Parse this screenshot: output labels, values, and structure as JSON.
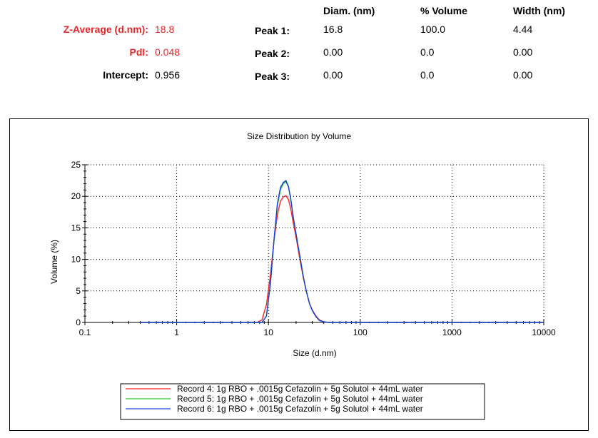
{
  "summary": {
    "z_average_label": "Z-Average (d.nm):",
    "z_average_value": "18.8",
    "pdi_label": "PdI:",
    "pdi_value": "0.048",
    "intercept_label": "Intercept:",
    "intercept_value": "0.956"
  },
  "peaks": {
    "headers": [
      "Diam. (nm)",
      "% Volume",
      "Width (nm)"
    ],
    "rows": [
      {
        "label": "Peak 1:",
        "diam": "16.8",
        "volume": "100.0",
        "width": "4.44"
      },
      {
        "label": "Peak 2:",
        "diam": "0.00",
        "volume": "0.0",
        "width": "0.00"
      },
      {
        "label": "Peak 3:",
        "diam": "0.00",
        "volume": "0.0",
        "width": "0.00"
      }
    ]
  },
  "colors": {
    "highlight_text": "#e8262a",
    "record4": "#ff2020",
    "record5": "#22cc22",
    "record6": "#1a3fe0"
  },
  "chart_data": {
    "type": "line",
    "title": "Size Distribution by Volume",
    "xlabel": "Size (d.nm)",
    "ylabel": "Volume (%)",
    "xscale": "log",
    "xlim": [
      0.1,
      10000
    ],
    "ylim": [
      0,
      25
    ],
    "xticks": [
      "0.1",
      "1",
      "10",
      "100",
      "1000",
      "10000"
    ],
    "yticks": [
      "0",
      "5",
      "10",
      "15",
      "20",
      "25"
    ],
    "grid": true,
    "legend_placement": "bottom-center",
    "series": [
      {
        "name": "Record 4: 1g RBO + .0015g Cefazolin + 5g Solutol + 44mL water",
        "color": "#ff2020",
        "x": [
          0.4,
          7.5,
          8.5,
          9.5,
          10.5,
          11.5,
          12.5,
          13.5,
          14.5,
          15.5,
          16.5,
          17.5,
          18.5,
          20,
          22,
          24,
          26,
          28,
          30,
          33,
          36,
          40,
          45,
          10000
        ],
        "y": [
          0,
          0,
          0.4,
          2.8,
          7.5,
          13.0,
          17.0,
          19.2,
          19.9,
          20.1,
          19.5,
          18.0,
          16.0,
          13.5,
          10.0,
          7.0,
          4.8,
          3.0,
          2.0,
          1.0,
          0.4,
          0.1,
          0,
          0
        ]
      },
      {
        "name": "Record 5: 1g RBO + .0015g Cefazolin + 5g Solutol + 44mL water",
        "color": "#22cc22",
        "x": [
          0.4,
          8.5,
          9.5,
          10.5,
          11.5,
          12.5,
          13.5,
          14.5,
          15.5,
          16.5,
          17.5,
          18.5,
          20,
          22,
          24,
          26,
          28,
          30,
          33,
          36,
          40,
          45,
          10000
        ],
        "y": [
          0,
          0,
          1.0,
          6.0,
          13.0,
          18.5,
          21.0,
          22.0,
          22.3,
          21.5,
          19.5,
          17.0,
          14.0,
          10.5,
          7.2,
          4.8,
          3.0,
          1.9,
          0.9,
          0.3,
          0.1,
          0,
          0
        ]
      },
      {
        "name": "Record 6: 1g RBO + .0015g Cefazolin + 5g Solutol + 44mL water",
        "color": "#1a3fe0",
        "x": [
          0.4,
          8.5,
          9.5,
          10.5,
          11.5,
          12.5,
          13.5,
          14.5,
          15.5,
          16.5,
          17.5,
          18.5,
          20,
          22,
          24,
          26,
          28,
          30,
          33,
          36,
          40,
          45,
          10000
        ],
        "y": [
          0,
          0,
          1.0,
          6.2,
          13.2,
          18.8,
          21.4,
          22.2,
          22.5,
          21.6,
          19.6,
          17.0,
          14.0,
          10.5,
          7.2,
          4.8,
          3.0,
          1.9,
          0.9,
          0.3,
          0.1,
          0,
          0
        ]
      }
    ]
  }
}
